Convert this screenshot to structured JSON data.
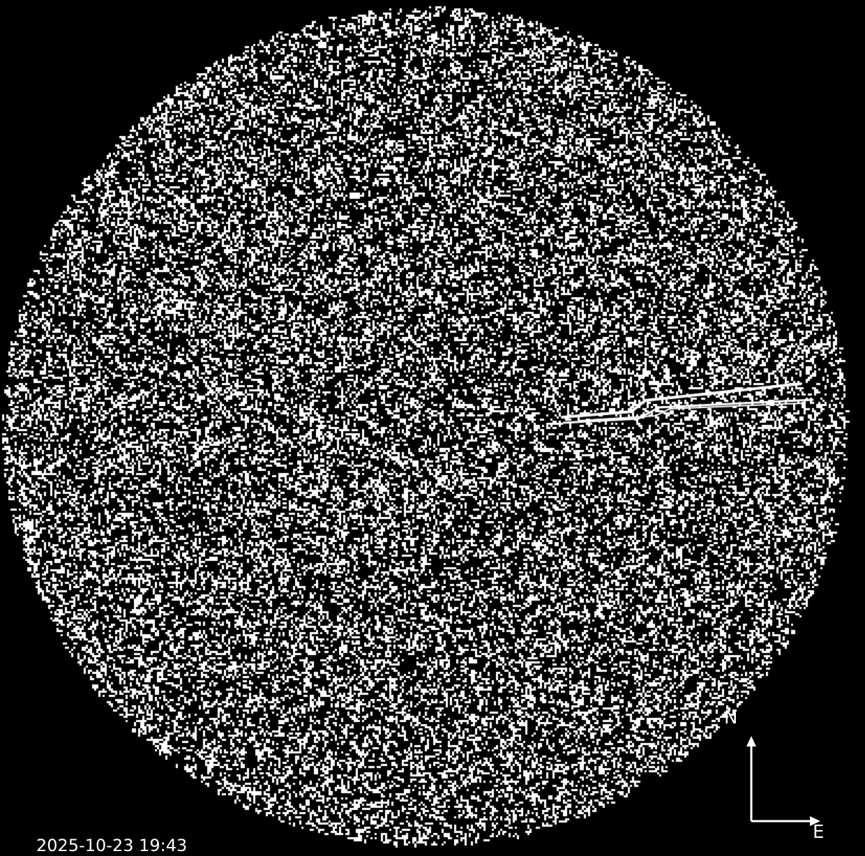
{
  "image": {
    "background_color": "#000000",
    "noise_color": "#ffffff",
    "streak_color": "#ffffff"
  },
  "compass": {
    "north_label": "N",
    "east_label": "E",
    "arrow_color": "#ffffff"
  },
  "timestamp": "2025-10-23 19:43"
}
